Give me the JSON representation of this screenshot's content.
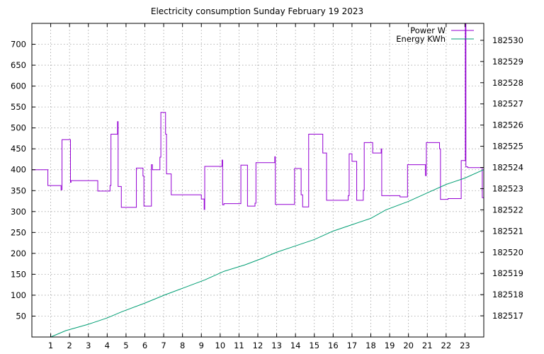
{
  "chart_data": {
    "type": "line",
    "title": "Electricity consumption Sunday February 19 2023",
    "xlabel": "",
    "ylabel": "",
    "y2label": "",
    "xlim": [
      0,
      24
    ],
    "ylim": [
      0,
      750
    ],
    "y2lim": [
      182516,
      182530.8
    ],
    "xticks": [
      1,
      2,
      3,
      4,
      5,
      6,
      7,
      8,
      9,
      10,
      11,
      12,
      13,
      14,
      15,
      16,
      17,
      18,
      19,
      20,
      21,
      22,
      23
    ],
    "yticks": [
      50,
      100,
      150,
      200,
      250,
      300,
      350,
      400,
      450,
      500,
      550,
      600,
      650,
      700
    ],
    "y2ticks": [
      182517,
      182518,
      182519,
      182520,
      182521,
      182522,
      182523,
      182524,
      182525,
      182526,
      182527,
      182528,
      182529,
      182530
    ],
    "grid": true,
    "legend_position": "top-right",
    "series": [
      {
        "name": "Power W",
        "axis": "y",
        "color": "#9400d3",
        "points": [
          [
            0.0,
            400
          ],
          [
            0.85,
            400
          ],
          [
            0.85,
            362
          ],
          [
            1.55,
            362
          ],
          [
            1.55,
            352
          ],
          [
            1.6,
            352
          ],
          [
            1.6,
            472
          ],
          [
            2.05,
            472
          ],
          [
            2.05,
            370
          ],
          [
            2.08,
            370
          ],
          [
            2.08,
            374
          ],
          [
            3.5,
            374
          ],
          [
            3.5,
            349
          ],
          [
            4.15,
            349
          ],
          [
            4.15,
            362
          ],
          [
            4.2,
            362
          ],
          [
            4.2,
            485
          ],
          [
            4.55,
            485
          ],
          [
            4.55,
            515
          ],
          [
            4.58,
            515
          ],
          [
            4.58,
            360
          ],
          [
            4.75,
            360
          ],
          [
            4.75,
            310
          ],
          [
            5.55,
            310
          ],
          [
            5.55,
            404
          ],
          [
            5.9,
            404
          ],
          [
            5.9,
            385
          ],
          [
            5.95,
            385
          ],
          [
            5.95,
            313
          ],
          [
            6.35,
            313
          ],
          [
            6.35,
            412
          ],
          [
            6.4,
            412
          ],
          [
            6.4,
            400
          ],
          [
            6.8,
            400
          ],
          [
            6.8,
            430
          ],
          [
            6.85,
            430
          ],
          [
            6.85,
            537
          ],
          [
            7.1,
            537
          ],
          [
            7.1,
            485
          ],
          [
            7.15,
            485
          ],
          [
            7.15,
            390
          ],
          [
            7.4,
            390
          ],
          [
            7.4,
            340
          ],
          [
            9.0,
            340
          ],
          [
            9.0,
            330
          ],
          [
            9.15,
            330
          ],
          [
            9.15,
            305
          ],
          [
            9.18,
            305
          ],
          [
            9.18,
            408
          ],
          [
            10.1,
            408
          ],
          [
            10.1,
            423
          ],
          [
            10.13,
            423
          ],
          [
            10.13,
            316
          ],
          [
            10.2,
            316
          ],
          [
            10.2,
            319
          ],
          [
            11.1,
            319
          ],
          [
            11.1,
            411
          ],
          [
            11.45,
            411
          ],
          [
            11.45,
            313
          ],
          [
            11.85,
            313
          ],
          [
            11.85,
            320
          ],
          [
            11.9,
            320
          ],
          [
            11.9,
            417
          ],
          [
            12.9,
            417
          ],
          [
            12.9,
            431
          ],
          [
            12.93,
            431
          ],
          [
            12.93,
            317
          ],
          [
            13.95,
            317
          ],
          [
            13.95,
            403
          ],
          [
            14.3,
            403
          ],
          [
            14.3,
            340
          ],
          [
            14.38,
            340
          ],
          [
            14.38,
            311
          ],
          [
            14.7,
            311
          ],
          [
            14.7,
            485
          ],
          [
            15.45,
            485
          ],
          [
            15.45,
            440
          ],
          [
            15.65,
            440
          ],
          [
            15.65,
            327
          ],
          [
            16.8,
            327
          ],
          [
            16.8,
            338
          ],
          [
            16.85,
            338
          ],
          [
            16.85,
            438
          ],
          [
            17.0,
            438
          ],
          [
            17.0,
            420
          ],
          [
            17.25,
            420
          ],
          [
            17.25,
            327
          ],
          [
            17.6,
            327
          ],
          [
            17.6,
            351
          ],
          [
            17.65,
            351
          ],
          [
            17.65,
            465
          ],
          [
            18.1,
            465
          ],
          [
            18.1,
            440
          ],
          [
            18.55,
            440
          ],
          [
            18.55,
            450
          ],
          [
            18.58,
            450
          ],
          [
            18.58,
            338
          ],
          [
            19.55,
            338
          ],
          [
            19.55,
            335
          ],
          [
            19.95,
            335
          ],
          [
            19.95,
            412
          ],
          [
            20.9,
            412
          ],
          [
            20.9,
            386
          ],
          [
            20.95,
            386
          ],
          [
            20.95,
            465
          ],
          [
            21.65,
            465
          ],
          [
            21.65,
            450
          ],
          [
            21.7,
            450
          ],
          [
            21.7,
            329
          ],
          [
            22.1,
            329
          ],
          [
            22.1,
            331
          ],
          [
            22.8,
            331
          ],
          [
            22.8,
            422
          ],
          [
            23.02,
            422
          ],
          [
            23.02,
            750
          ],
          [
            23.05,
            750
          ],
          [
            23.05,
            407
          ],
          [
            23.15,
            407
          ],
          [
            23.15,
            405
          ],
          [
            23.92,
            405
          ],
          [
            23.92,
            333
          ],
          [
            24.0,
            333
          ]
        ]
      },
      {
        "name": "Energy KWh",
        "axis": "y2",
        "color": "#009e73",
        "points": [
          [
            1.0,
            182516.0
          ],
          [
            1.8,
            182516.3
          ],
          [
            3.0,
            182516.6
          ],
          [
            4.0,
            182516.9
          ],
          [
            4.8,
            182517.2
          ],
          [
            6.0,
            182517.6
          ],
          [
            7.1,
            182518.0
          ],
          [
            8.0,
            182518.3
          ],
          [
            9.2,
            182518.7
          ],
          [
            10.2,
            182519.1
          ],
          [
            11.3,
            182519.4
          ],
          [
            12.2,
            182519.7
          ],
          [
            13.0,
            182520.0
          ],
          [
            14.0,
            182520.3
          ],
          [
            15.0,
            182520.6
          ],
          [
            16.0,
            182521.0
          ],
          [
            17.0,
            182521.3
          ],
          [
            18.0,
            182521.6
          ],
          [
            18.8,
            182522.0
          ],
          [
            20.0,
            182522.4
          ],
          [
            21.0,
            182522.8
          ],
          [
            22.0,
            182523.2
          ],
          [
            23.0,
            182523.5
          ],
          [
            24.0,
            182523.9
          ]
        ]
      }
    ]
  }
}
